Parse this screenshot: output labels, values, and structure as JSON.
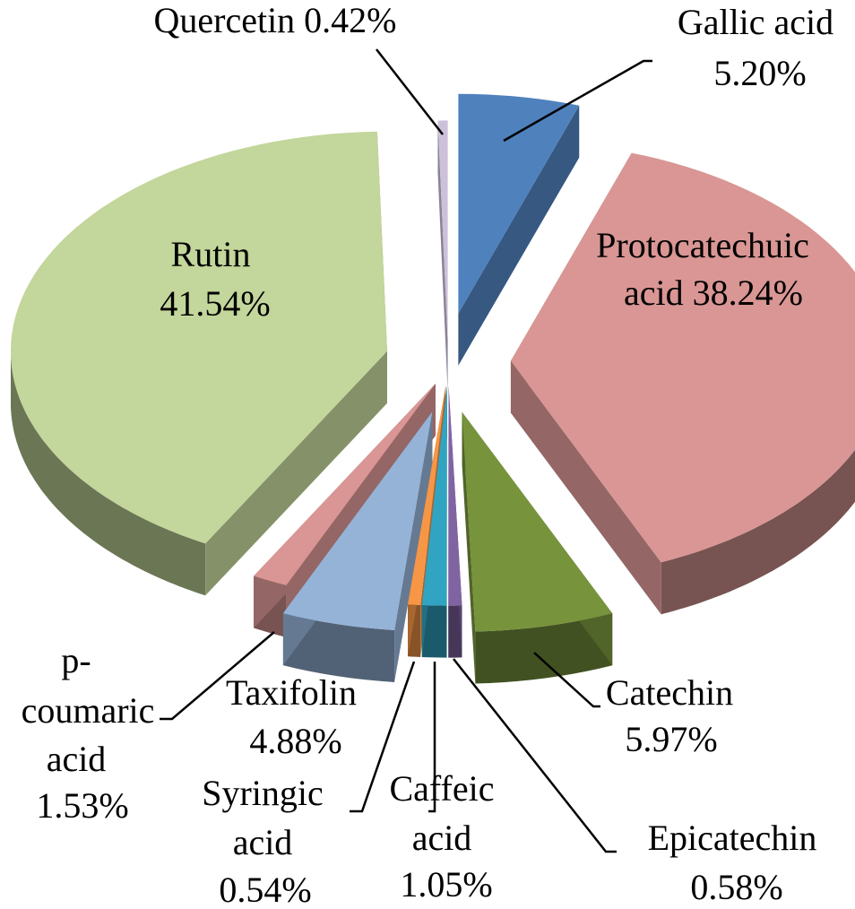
{
  "chart_data": {
    "type": "pie",
    "style": "3d-exploded",
    "title": "",
    "slices": [
      {
        "name": "Gallic acid",
        "value": 5.2,
        "label": "5.20%",
        "color": "#4f81bd"
      },
      {
        "name": "Protocatechuic acid",
        "value": 38.24,
        "label": "38.24%",
        "color": "#d99694"
      },
      {
        "name": "Catechin",
        "value": 5.97,
        "label": "5.97%",
        "color": "#77933c"
      },
      {
        "name": "Epicatechin",
        "value": 0.58,
        "label": "0.58%",
        "color": "#8064a2"
      },
      {
        "name": "Caffeic acid",
        "value": 1.05,
        "label": "1.05%",
        "color": "#31a4c2"
      },
      {
        "name": "Syringic acid",
        "value": 0.54,
        "label": "0.54%",
        "color": "#f79646"
      },
      {
        "name": "Taxifolin",
        "value": 4.88,
        "label": "4.88%",
        "color": "#95b3d7"
      },
      {
        "name": "p-coumaric acid",
        "value": 1.53,
        "label": "1.53%",
        "color": "#d99694"
      },
      {
        "name": "Rutin",
        "value": 41.54,
        "label": "41.54%",
        "color": "#c3d69b"
      },
      {
        "name": "Quercetin",
        "value": 0.42,
        "label": "0.42%",
        "color": "#ccc0da"
      }
    ]
  },
  "labels": {
    "gallic": {
      "line1": "Gallic acid",
      "line2": "5.20%"
    },
    "protocatechuic": {
      "line1": "Protocatechuic",
      "line2": "acid 38.24%"
    },
    "catechin": {
      "line1": "Catechin",
      "line2": "5.97%"
    },
    "epicatechin": {
      "line1": "Epicatechin",
      "line2": "0.58%"
    },
    "caffeic": {
      "line1": "Caffeic",
      "line2": "acid",
      "line3": "1.05%"
    },
    "syringic": {
      "line1": "Syringic",
      "line2": "acid",
      "line3": "0.54%"
    },
    "taxifolin": {
      "line1": "Taxifolin",
      "line2": "4.88%"
    },
    "coumaric": {
      "line1": "p-",
      "line2": "coumaric",
      "line3": "acid",
      "line4": "1.53%"
    },
    "rutin": {
      "line1": "Rutin",
      "line2": "41.54%"
    },
    "quercetin": {
      "line1": "Quercetin 0.42%"
    }
  }
}
